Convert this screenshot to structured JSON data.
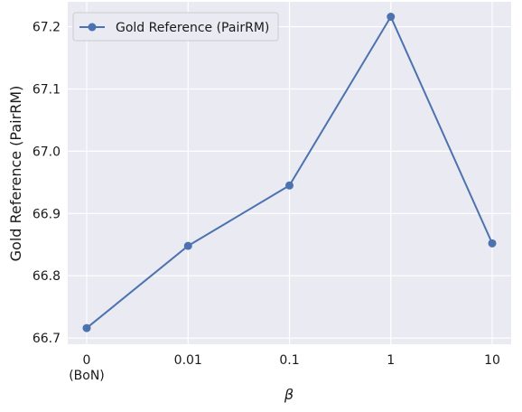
{
  "chart_data": {
    "type": "line",
    "categories": [
      "0",
      "0.01",
      "0.1",
      "1",
      "10"
    ],
    "category_sublabels": [
      "(BoN)",
      "",
      "",
      "",
      ""
    ],
    "series": [
      {
        "name": "Gold Reference (PairRM)",
        "values": [
          66.716,
          66.848,
          66.945,
          67.216,
          66.852
        ],
        "color": "#4c72b0",
        "marker": "circle"
      }
    ],
    "xlabel": "β",
    "ylabel": "Gold Reference (PairRM)",
    "ylim": [
      66.69,
      67.24
    ],
    "yticks": [
      66.7,
      66.8,
      66.9,
      67.0,
      67.1,
      67.2
    ],
    "ytick_labels": [
      "66.7",
      "66.8",
      "66.9",
      "67.0",
      "67.1",
      "67.2"
    ],
    "grid": true,
    "legend_position": "top-left",
    "background_color": "#eaeaf2",
    "grid_color": "#ffffff"
  }
}
